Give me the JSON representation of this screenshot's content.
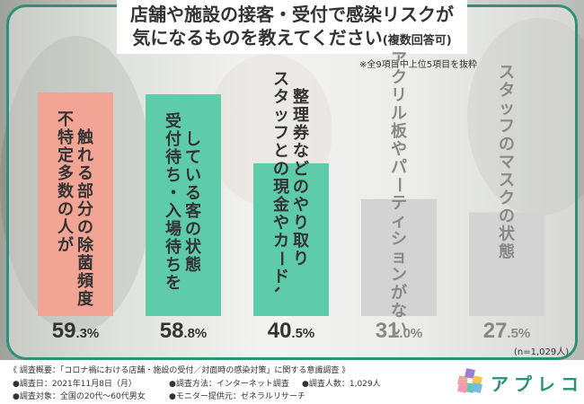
{
  "title": {
    "line1": "店舗や施設の接客・受付で感染リスクが",
    "line2": "気になるものを教えてください",
    "line2_sub": "(複数回答可)"
  },
  "note": "※全9項目中上位5項目を抜粋",
  "chart_data": {
    "type": "bar",
    "categories": [
      "触れる部分の除菌頻度|不特定多数の人が",
      "している客の状態|受付待ち・入場待ちを",
      "整理券などのやり取り|スタッフとの現金やカード、",
      "アクリル板やパーティションがない",
      "スタッフのマスクの状態"
    ],
    "values": [
      59.3,
      58.8,
      40.5,
      31.0,
      27.5
    ],
    "value_labels": [
      {
        "int": "59",
        "dec": ".3%"
      },
      {
        "int": "58",
        "dec": ".8%"
      },
      {
        "int": "40",
        "dec": ".5%"
      },
      {
        "int": "31",
        "dec": ".0%"
      },
      {
        "int": "27",
        "dec": ".5%"
      }
    ],
    "colors": [
      "#f2a594",
      "#5ecba9",
      "#5ecba9",
      "#d3d3d3",
      "#d3d3d3"
    ],
    "label_colors": [
      "#333333",
      "#333333",
      "#333333",
      "#888888",
      "#888888"
    ],
    "value_colors": [
      "#333333",
      "#333333",
      "#333333",
      "#888888",
      "#888888"
    ],
    "ylim": [
      0,
      100
    ]
  },
  "n_note": "(n=1,029人)",
  "footer": {
    "line1": "《 調査概要：「コロナ禍における店舗・施設の受付／対面時の感染対策」に関する意識調査 》",
    "line2a": "●調査日：2021年11月8日（月）",
    "line2b": "●調査方法：インターネット調査",
    "line2c": "●調査人数：1,029人",
    "line3a": "●調査対象：全国の20代～60代男女",
    "line3b": "●モニター提供元：ゼネラルリサーチ"
  },
  "logo": {
    "text": "アプレコ",
    "colors": [
      "#f4a59a",
      "#9b7fd1",
      "#f5c84c",
      "#5ecba9",
      "#79b8e8",
      "#f39ab8"
    ]
  }
}
